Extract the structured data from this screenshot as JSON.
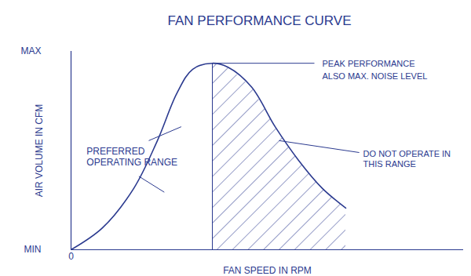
{
  "chart_data": {
    "type": "line",
    "title": "FAN PERFORMANCE CURVE",
    "x_label": "FAN SPEED IN RPM",
    "y_label": "AIR VOLUME IN CFM",
    "x": [
      0,
      8,
      16,
      22,
      27,
      31,
      36,
      40,
      46,
      52,
      58,
      64,
      70
    ],
    "values": [
      0,
      11,
      31,
      55,
      79,
      91,
      94,
      92,
      82,
      62,
      45,
      31,
      21
    ],
    "color": "#2b3a8f",
    "xlim": [
      0,
      100
    ],
    "ylim": [
      0,
      100
    ],
    "xticks": [
      0
    ],
    "yticks": [
      {
        "value": 0,
        "label": "MIN"
      },
      {
        "value": 100,
        "label": "MAX"
      }
    ],
    "annotations": [
      {
        "text": [
          "PEAK PERFORMANCE",
          "ALSO MAX. NOISE LEVEL"
        ],
        "x": 36,
        "y": 94
      }
    ],
    "preferred_range": {
      "label": [
        "PREFERRED",
        "OPERATING RANGE"
      ],
      "from": 0,
      "to": 36
    },
    "avoid_range": {
      "label": [
        "DO NOT OPERATE IN",
        "THIS RANGE"
      ],
      "from": 36,
      "to": 70
    }
  }
}
